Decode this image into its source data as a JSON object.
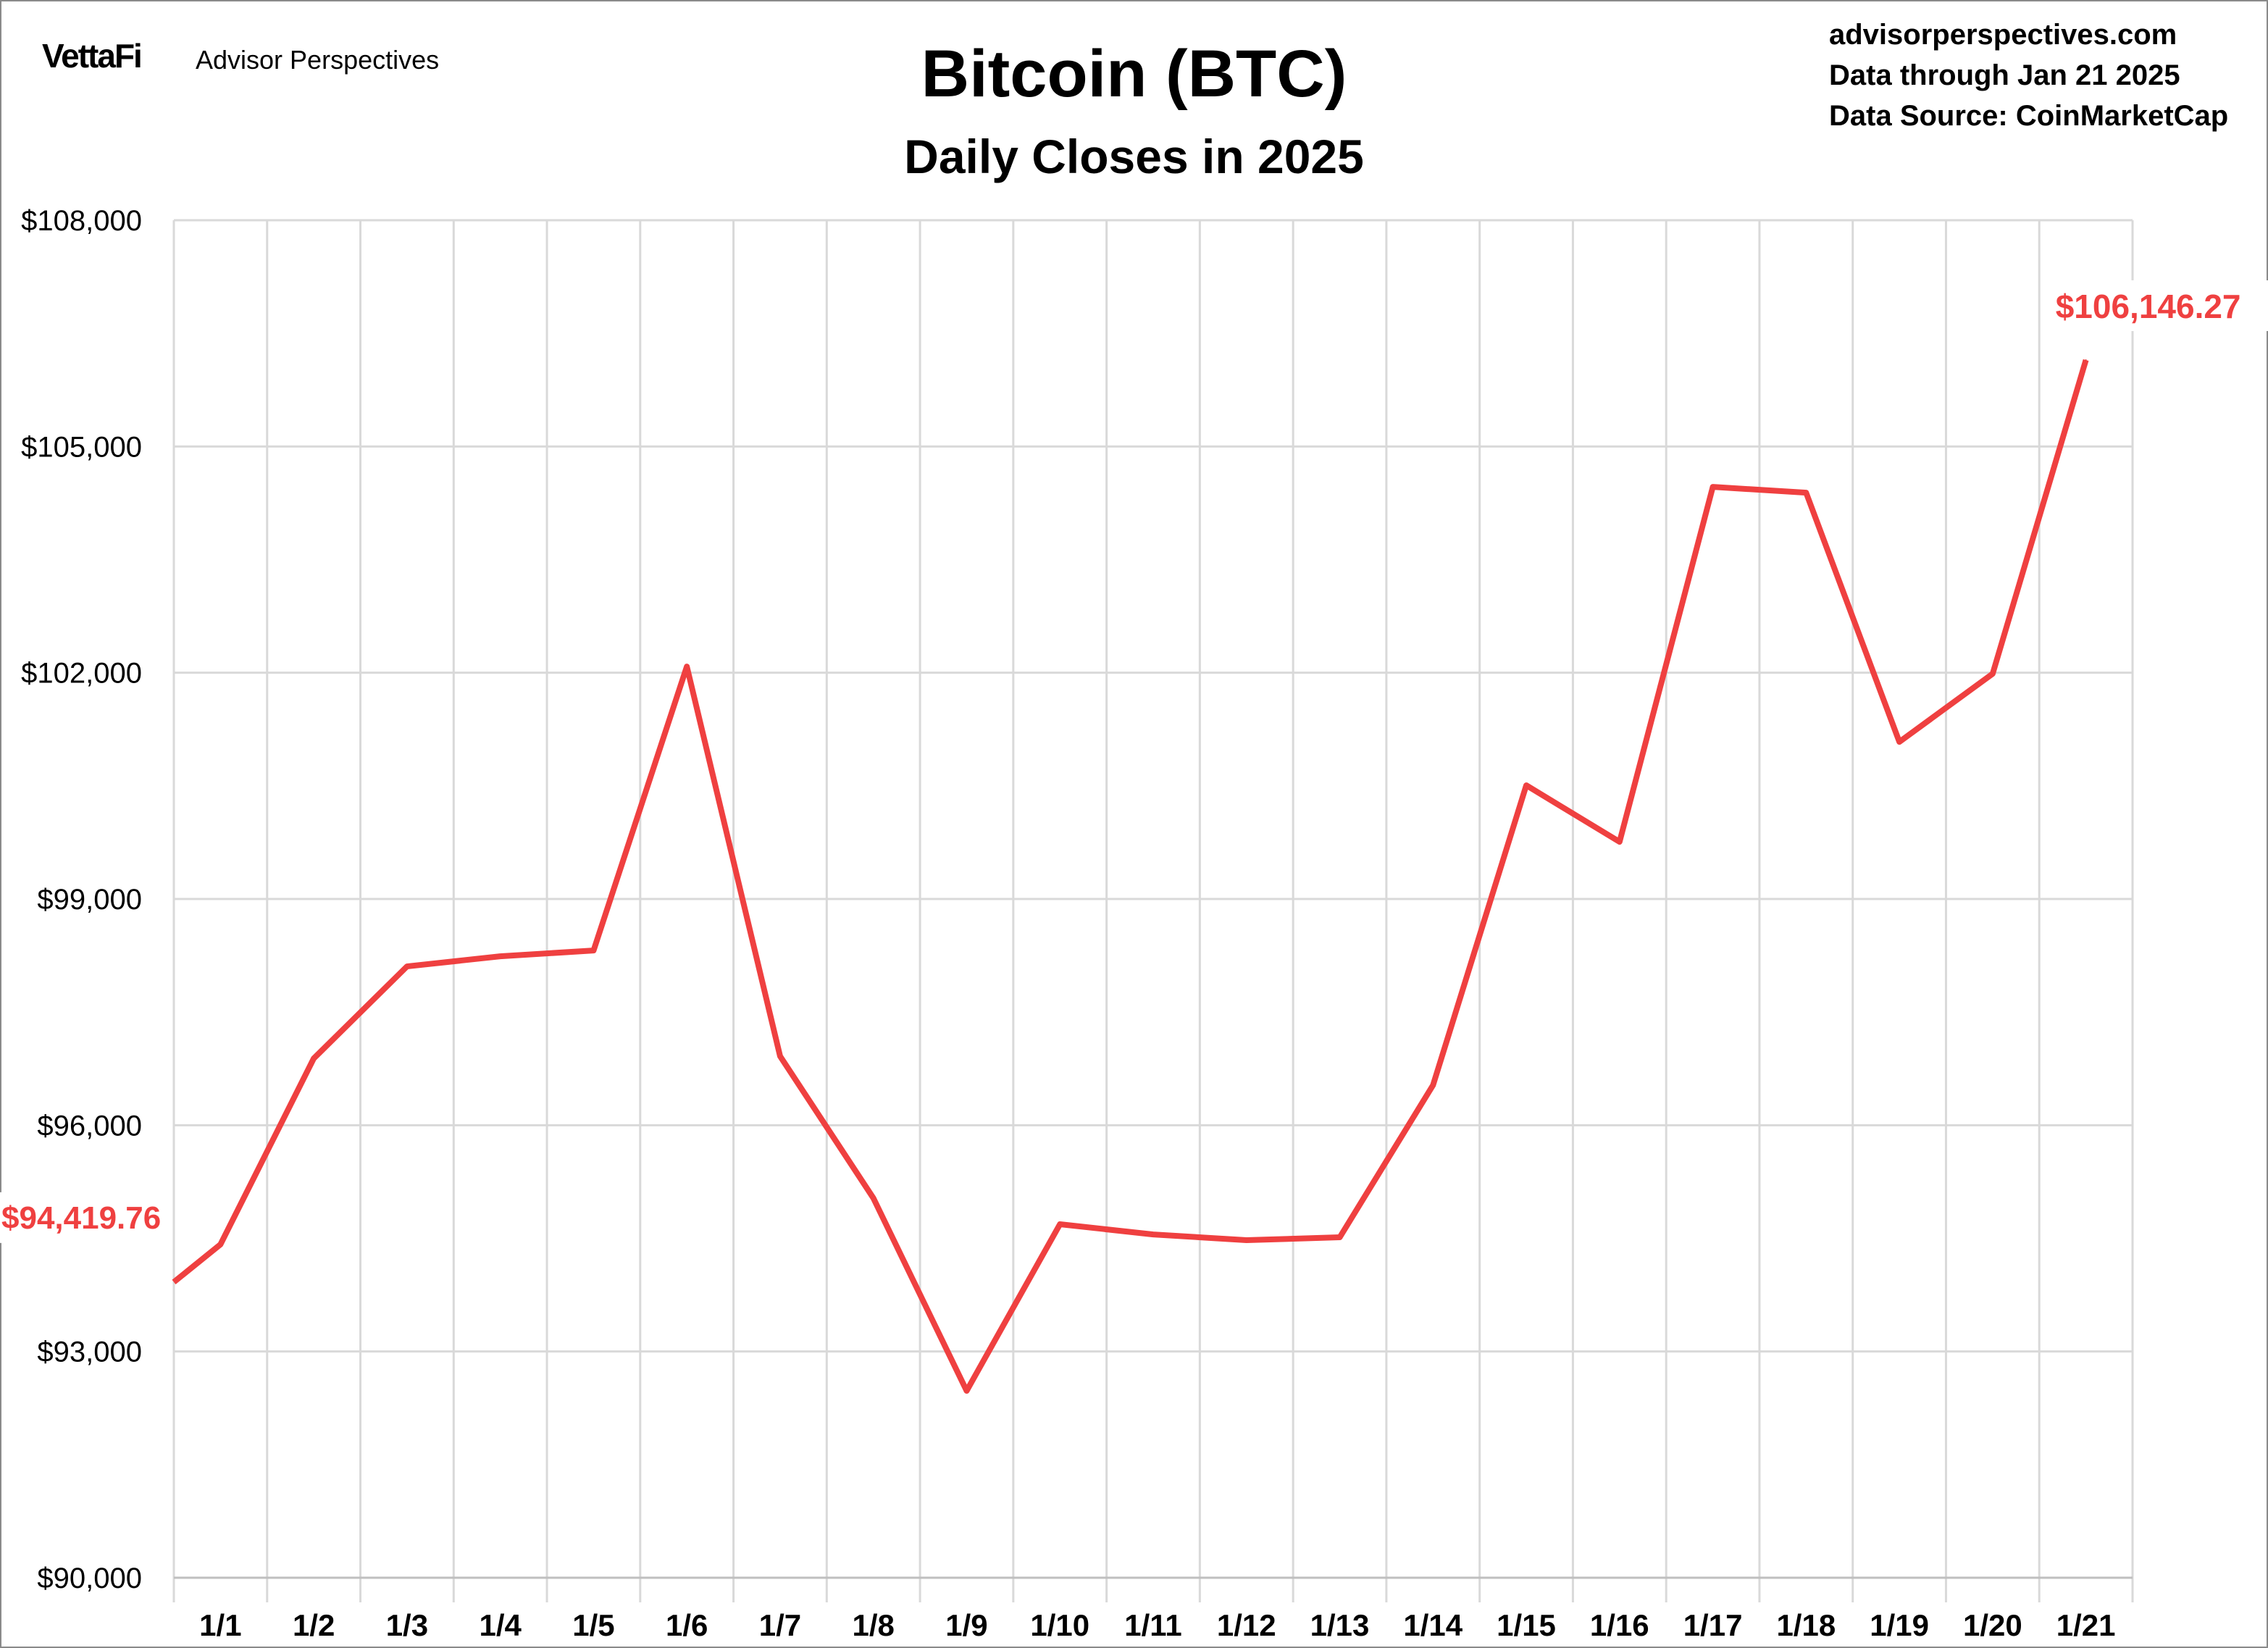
{
  "header": {
    "brand": "VettaFi",
    "brand_sub": "Advisor Perspectives",
    "site": "advisorperspectives.com",
    "data_through": "Data through Jan 21 2025",
    "data_source": "Data Source: CoinMarketCap"
  },
  "chart_data": {
    "type": "line",
    "title": "Bitcoin (BTC)",
    "subtitle": "Daily Closes in 2025",
    "xlabel": "",
    "ylabel": "",
    "categories": [
      "1/1",
      "1/2",
      "1/3",
      "1/4",
      "1/5",
      "1/6",
      "1/7",
      "1/8",
      "1/9",
      "1/10",
      "1/11",
      "1/12",
      "1/13",
      "1/14",
      "1/15",
      "1/16",
      "1/17",
      "1/18",
      "1/19",
      "1/20",
      "1/21"
    ],
    "lead_in_value": 93920,
    "series": [
      {
        "values": [
          94419.76,
          96886,
          98106,
          98240,
          98317,
          102082,
          96915,
          95033,
          92478,
          94687,
          94552,
          94476,
          94514,
          96531,
          100507,
          99758,
          104464,
          104387,
          101083,
          101986,
          106146.27
        ],
        "color": "#ef4040"
      }
    ],
    "ylim": [
      90000,
      108000
    ],
    "yticks": [
      90000,
      93000,
      96000,
      99000,
      102000,
      105000,
      108000
    ],
    "ytick_labels": [
      "$90,000",
      "$93,000",
      "$96,000",
      "$99,000",
      "$102,000",
      "$105,000",
      "$108,000"
    ],
    "annotations": {
      "first": "$94,419.76",
      "last": "$106,146.27"
    },
    "grid": true,
    "legend": "none"
  }
}
